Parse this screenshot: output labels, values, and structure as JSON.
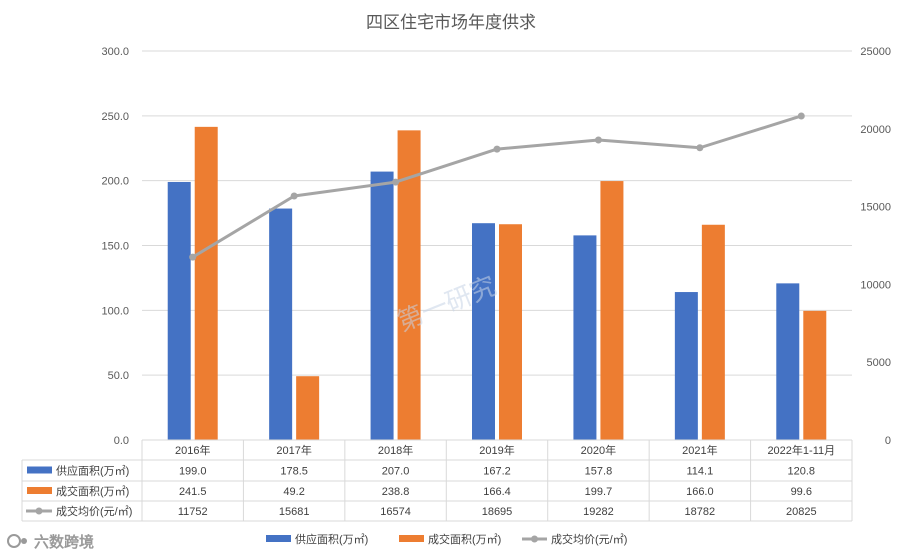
{
  "chart_data": {
    "type": "bar",
    "title": "四区住宅市场年度供求",
    "categories": [
      "2016年",
      "2017年",
      "2018年",
      "2019年",
      "2020年",
      "2021年",
      "2022年1-11月"
    ],
    "series": [
      {
        "name": "供应面积(万㎡)",
        "kind": "bar",
        "axis": "left",
        "color": "#4472C4",
        "values": [
          199.0,
          178.5,
          207.0,
          167.2,
          157.8,
          114.1,
          120.8
        ],
        "labels": [
          "199.0",
          "178.5",
          "207.0",
          "167.2",
          "157.8",
          "114.1",
          "120.8"
        ]
      },
      {
        "name": "成交面积(万㎡)",
        "kind": "bar",
        "axis": "left",
        "color": "#ED7D31",
        "values": [
          241.5,
          49.2,
          238.8,
          166.4,
          199.7,
          166.0,
          99.6
        ],
        "labels": [
          "241.5",
          "49.2",
          "238.8",
          "166.4",
          "199.7",
          "166.0",
          "99.6"
        ]
      },
      {
        "name": "成交均价(元/㎡)",
        "kind": "line",
        "axis": "right",
        "color": "#A5A5A5",
        "values": [
          11752,
          15681,
          16574,
          18695,
          19282,
          18782,
          20825
        ],
        "labels": [
          "11752",
          "15681",
          "16574",
          "18695",
          "19282",
          "18782",
          "20825"
        ]
      }
    ],
    "ylim_left": [
      0,
      300
    ],
    "ylim_right": [
      0,
      25000
    ],
    "yticks_left": [
      "0.0",
      "50.0",
      "100.0",
      "150.0",
      "200.0",
      "250.0",
      "300.0"
    ],
    "yticks_right": [
      "0",
      "5000",
      "10000",
      "15000",
      "20000",
      "25000"
    ],
    "grid": true,
    "legend_position": "bottom",
    "data_table": true
  },
  "watermark": "第一研究",
  "brand_text": "六数跨境",
  "colors": {
    "grid": "#d9d9d9",
    "text": "#595959"
  }
}
